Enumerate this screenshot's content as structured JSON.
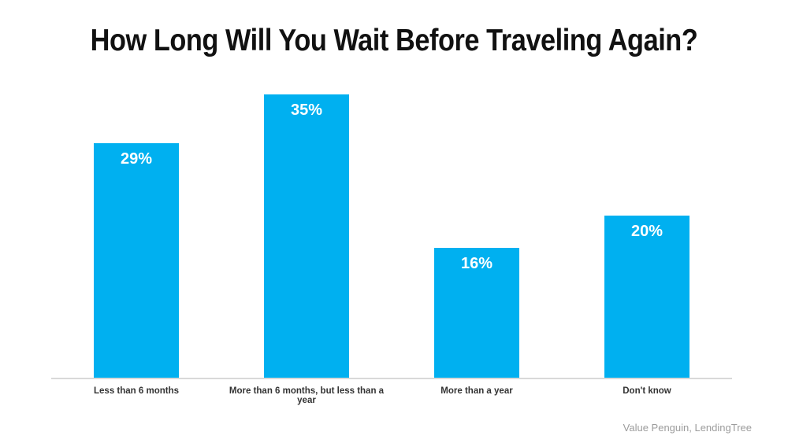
{
  "source_note": "Value Penguin, LendingTree",
  "colors": {
    "bar": "#00B0F0",
    "bar_value_label": "#ffffff",
    "axis_line": "#d9d9d9",
    "title_text": "#111111",
    "axis_label_text": "#333333",
    "source_text": "#9c9c9c",
    "background": "#ffffff"
  },
  "chart_data": {
    "type": "bar",
    "title": "How Long Will You Wait Before Traveling Again?",
    "categories": [
      "Less than 6 months",
      "More than 6 months, but less than a year",
      "More than a year",
      "Don't know"
    ],
    "values": [
      29,
      35,
      16,
      20
    ],
    "data_labels": [
      "29%",
      "35%",
      "16%",
      "20%"
    ],
    "xlabel": "",
    "ylabel": "",
    "y_axis_visible": false,
    "grid": false,
    "legend": false,
    "data_label_position": "inside-top"
  }
}
